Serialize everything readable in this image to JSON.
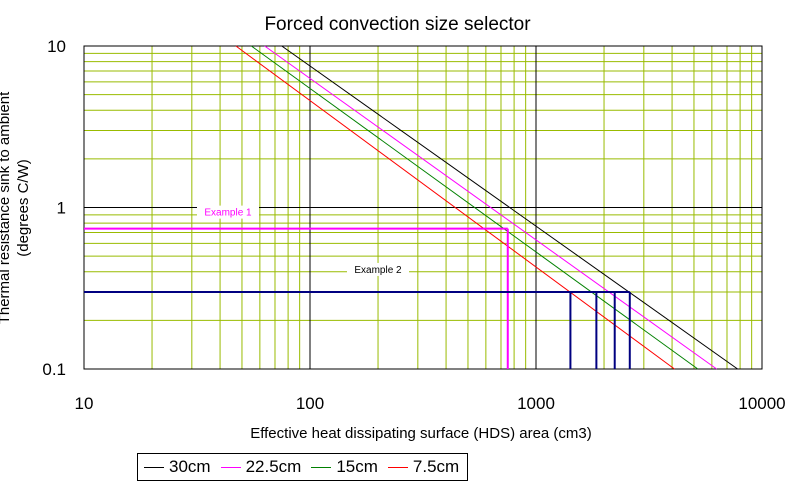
{
  "chart_data": {
    "type": "line",
    "title": "Forced convection size selector",
    "xlabel": "Effective heat dissipating surface (HDS) area (cm3)",
    "ylabel_lines": [
      "Thermal resistance sink to ambient",
      "(degrees C/W)"
    ],
    "x_scale": "log",
    "y_scale": "log",
    "xlim": [
      10,
      10000
    ],
    "ylim": [
      0.1,
      10
    ],
    "x_ticks": [
      "10",
      "100",
      "1000",
      "10000"
    ],
    "y_ticks": [
      "0.1",
      "1",
      "10"
    ],
    "grid": true,
    "legend_position": "bottom-left",
    "series": [
      {
        "name": "30cm",
        "color": "#000000",
        "x": [
          75,
          7800
        ],
        "y": [
          10,
          0.1
        ]
      },
      {
        "name": "22.5cm",
        "color": "#ff00ff",
        "x": [
          63,
          6300
        ],
        "y": [
          10,
          0.1
        ]
      },
      {
        "name": "15cm",
        "color": "#008000",
        "x": [
          55,
          5200
        ],
        "y": [
          10,
          0.1
        ]
      },
      {
        "name": "7.5cm",
        "color": "#ff0000",
        "x": [
          47,
          4100
        ],
        "y": [
          10,
          0.1
        ]
      }
    ],
    "annotations": [
      {
        "label": "Example 1",
        "color": "#ff00ff",
        "y": 0.74,
        "x_from": 10,
        "x_to": 750,
        "drop_x": [
          750
        ]
      },
      {
        "label": "Example 2",
        "color": "#000080",
        "y": 0.3,
        "x_from": 10,
        "x_to": 2600,
        "drop_x": [
          1420,
          1850,
          2230,
          2600
        ]
      }
    ]
  }
}
